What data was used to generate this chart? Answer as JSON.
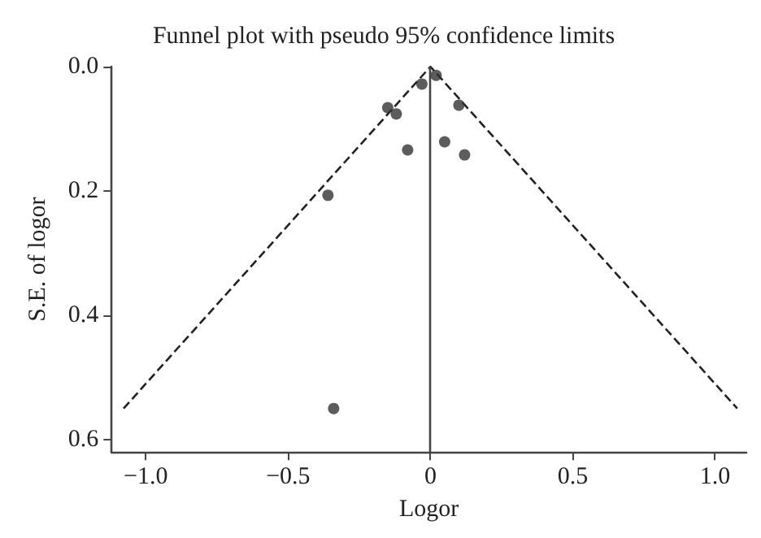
{
  "chart_data": {
    "type": "scatter",
    "title": "Funnel plot with pseudo 95% confidence limits",
    "xlabel": "Logor",
    "ylabel": "S.E. of logor",
    "xlim": [
      -1.12,
      1.11
    ],
    "ylim": [
      0.62,
      0
    ],
    "xticks": [
      {
        "value": -1,
        "label": "−1.0"
      },
      {
        "value": -0.5,
        "label": "−0.5"
      },
      0,
      0.5,
      {
        "value": 1,
        "label": "1.0"
      }
    ],
    "yticks": [
      {
        "value": 0,
        "label": "0.0"
      },
      0.2,
      0.4,
      0.6
    ],
    "grid": false,
    "marker": "circle",
    "series": [
      {
        "type": "scatter",
        "color": "#333333",
        "x": [
          0.02,
          -0.03,
          -0.15,
          -0.12,
          0.1,
          -0.08,
          0.05,
          0.12,
          -0.36,
          -0.34
        ],
        "values": [
          0.014,
          0.028,
          0.066,
          0.076,
          0.062,
          0.134,
          0.121,
          0.142,
          0.207,
          0.55
        ]
      },
      {
        "type": "line",
        "color": "#222222",
        "line_style": "dashed",
        "marker": "none",
        "x": [
          -1.078,
          0,
          1.078
        ],
        "values": [
          0.55,
          0,
          0.55
        ]
      }
    ],
    "ref_lines": [
      {
        "axis": "x",
        "value": 0,
        "color": "#444444",
        "line_style": "solid"
      }
    ]
  }
}
